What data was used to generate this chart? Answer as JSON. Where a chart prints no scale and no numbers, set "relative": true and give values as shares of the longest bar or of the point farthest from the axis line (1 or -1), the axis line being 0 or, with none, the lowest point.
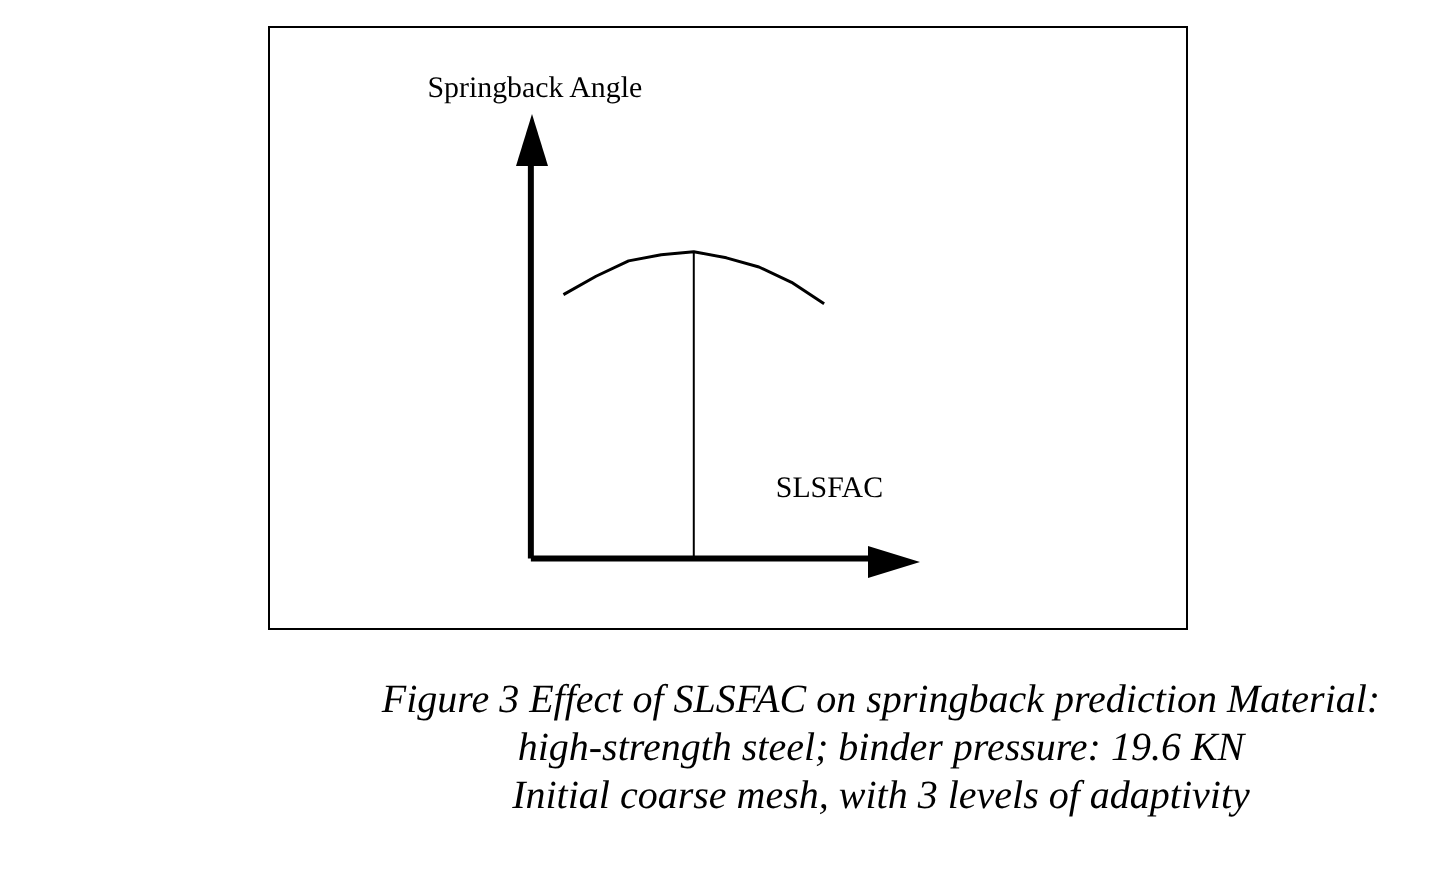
{
  "chart_data": {
    "type": "line",
    "relative": true,
    "ylabel": "Springback Angle",
    "xlabel": "SLSFAC",
    "categories": [
      null,
      null,
      null,
      null,
      null,
      null,
      null,
      null,
      null,
      null,
      null,
      null
    ],
    "tick_labels": false,
    "series": [
      {
        "color": "#000000",
        "values": [
          null,
          0.86,
          0.92,
          0.97,
          0.99,
          1,
          0.98,
          0.95,
          0.9,
          0.83,
          null,
          null
        ]
      }
    ],
    "ref_lines": [
      {
        "axis": "x",
        "color": "#000000"
      }
    ],
    "marker": "none",
    "line_style": "solid",
    "legend": false,
    "grid": false,
    "annotations": [
      "Figure 3 Effect of SLSFAC on springback prediction Material: high-strength steel; binder pressure: 19.6 KN",
      "Initial coarse mesh, with 3 levels of adaptivity"
    ]
  }
}
